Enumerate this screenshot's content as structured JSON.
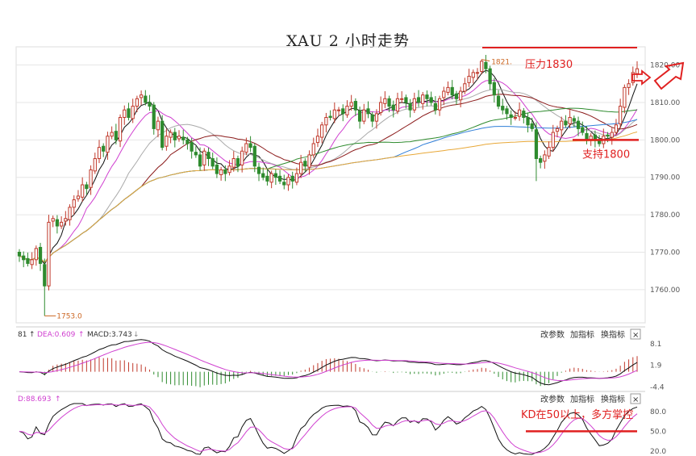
{
  "title": "XAU 2 小时走势",
  "colors": {
    "up": "#c0392b",
    "down": "#2e8b2e",
    "annotation": "#e02020",
    "ma_black": "#111111",
    "ma_magenta": "#d040d0",
    "ma_gray": "#aaaaaa",
    "ma_maroon": "#8b1a1a",
    "ma_green": "#2e8b2e",
    "ma_blue": "#2f7ed8",
    "ma_orange": "#e8a838"
  },
  "chart_data": [
    {
      "type": "candlestick",
      "ylim": [
        1752,
        1824
      ],
      "yticks": [
        1760,
        1770,
        1780,
        1790,
        1800,
        1810,
        1820
      ],
      "ytick_labels": [
        "1760.00",
        "1770.00",
        "1780.00",
        "1790.00",
        "1800.00",
        "1810.00",
        "1820.00"
      ],
      "high_marker": {
        "label": "1821.",
        "value": 1821.5
      },
      "low_marker": {
        "label": "1753.0",
        "value": 1753.0
      },
      "annotations": {
        "resistance": {
          "label": "压力1830"
        },
        "support": {
          "label": "支持1800",
          "value": 1800
        }
      },
      "closes": [
        1769,
        1768,
        1767,
        1768,
        1771,
        1767,
        1761,
        1778,
        1779,
        1777,
        1778,
        1779,
        1782,
        1784,
        1785,
        1788,
        1787,
        1792,
        1795,
        1798,
        1797,
        1801,
        1802,
        1800,
        1806,
        1808,
        1806,
        1809,
        1811,
        1812,
        1810,
        1809,
        1803,
        1805,
        1798,
        1801,
        1802,
        1800,
        1801,
        1800,
        1799,
        1797,
        1796,
        1793,
        1797,
        1795,
        1793,
        1791,
        1792,
        1791,
        1793,
        1795,
        1793,
        1797,
        1799,
        1798,
        1793,
        1791,
        1790,
        1789,
        1791,
        1790,
        1789,
        1788,
        1790,
        1789,
        1791,
        1794,
        1793,
        1796,
        1799,
        1801,
        1804,
        1806,
        1806,
        1808,
        1808,
        1807,
        1809,
        1810,
        1808,
        1805,
        1808,
        1807,
        1805,
        1807,
        1810,
        1811,
        1809,
        1808,
        1811,
        1811,
        1810,
        1808,
        1811,
        1810,
        1812,
        1811,
        1810,
        1808,
        1811,
        1813,
        1814,
        1812,
        1811,
        1813,
        1815,
        1817,
        1818,
        1818,
        1821,
        1819,
        1815,
        1812,
        1809,
        1808,
        1807,
        1806,
        1806,
        1808,
        1806,
        1804,
        1803,
        1795,
        1794,
        1796,
        1798,
        1802,
        1803,
        1805,
        1804,
        1806,
        1805,
        1803,
        1802,
        1800,
        1801,
        1800,
        1799,
        1801,
        1801,
        1802,
        1804,
        1809,
        1814,
        1815,
        1818,
        1819
      ]
    },
    {
      "type": "macd",
      "legend": {
        "partial": "81",
        "dea_label": "DEA:0.609",
        "macd_label": "MACD:3.743"
      },
      "ylim": [
        -5.0,
        9.5
      ],
      "yticks": [
        8.1,
        1.9,
        -4.4
      ],
      "ytick_labels": [
        "8.1",
        "1.9",
        "-4.4"
      ],
      "buttons": [
        "改参数",
        "加指标",
        "换指标"
      ],
      "close_label": "×"
    },
    {
      "type": "kd",
      "legend": {
        "d_label": "D:88.693"
      },
      "ylim": [
        15,
        92
      ],
      "yticks": [
        80,
        50,
        20
      ],
      "ytick_labels": [
        "80.0",
        "50.0",
        "20.0"
      ],
      "buttons": [
        "改参数",
        "加指标",
        "换指标"
      ],
      "close_label": "×",
      "annotation": {
        "label": "KD在50以上，多方掌控",
        "value": 50
      }
    }
  ]
}
